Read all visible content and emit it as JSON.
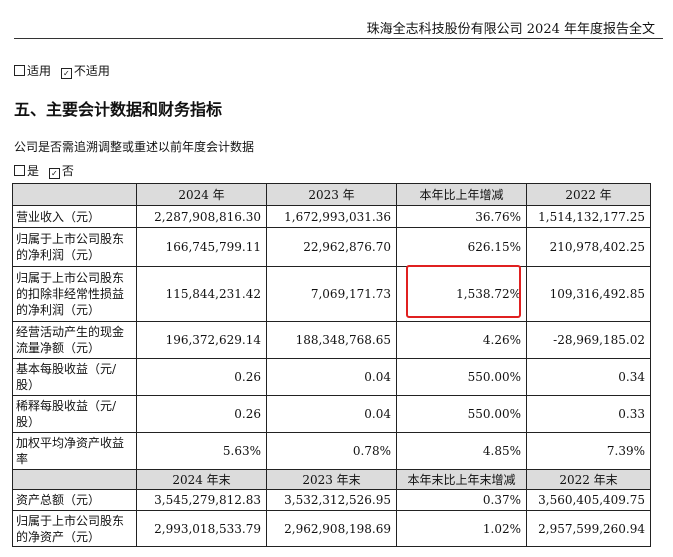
{
  "header": {
    "title": "珠海全志科技股份有限公司 2024 年年度报告全文"
  },
  "applicability": {
    "option_applicable": "适用",
    "option_not_applicable": "不适用",
    "selected": "不适用"
  },
  "section": {
    "title": "五、主要会计数据和财务指标"
  },
  "retro_adjust": {
    "question": "公司是否需追溯调整或重述以前年度会计数据",
    "option_yes": "是",
    "option_no": "否",
    "selected": "否"
  },
  "table": {
    "header1": [
      "",
      "2024 年",
      "2023 年",
      "本年比上年增减",
      "2022 年"
    ],
    "rows1": [
      {
        "label": "营业收入（元）",
        "values": [
          "2,287,908,816.30",
          "1,672,993,031.36",
          "36.76%",
          "1,514,132,177.25"
        ]
      },
      {
        "label": "归属于上市公司股东的净利润（元）",
        "values": [
          "166,745,799.11",
          "22,962,876.70",
          "626.15%",
          "210,978,402.25"
        ]
      },
      {
        "label": "归属于上市公司股东的扣除非经常性损益的净利润（元）",
        "values": [
          "115,844,231.42",
          "7,069,171.73",
          "1,538.72%",
          "109,316,492.85"
        ]
      },
      {
        "label": "经营活动产生的现金流量净额（元）",
        "values": [
          "196,372,629.14",
          "188,348,768.65",
          "4.26%",
          "-28,969,185.02"
        ]
      },
      {
        "label": "基本每股收益（元/股）",
        "values": [
          "0.26",
          "0.04",
          "550.00%",
          "0.34"
        ]
      },
      {
        "label": "稀释每股收益（元/股）",
        "values": [
          "0.26",
          "0.04",
          "550.00%",
          "0.33"
        ]
      },
      {
        "label": "加权平均净资产收益率",
        "values": [
          "5.63%",
          "0.78%",
          "4.85%",
          "7.39%"
        ]
      }
    ],
    "header2": [
      "",
      "2024 年末",
      "2023 年末",
      "本年末比上年末增减",
      "2022 年末"
    ],
    "rows2": [
      {
        "label": "资产总额（元）",
        "values": [
          "3,545,279,812.83",
          "3,532,312,526.95",
          "0.37%",
          "3,560,405,409.75"
        ]
      },
      {
        "label": "归属于上市公司股东的净资产（元）",
        "values": [
          "2,993,018,533.79",
          "2,962,908,198.69",
          "1.02%",
          "2,957,599,260.94"
        ]
      }
    ]
  },
  "highlight_color": "#e02020"
}
